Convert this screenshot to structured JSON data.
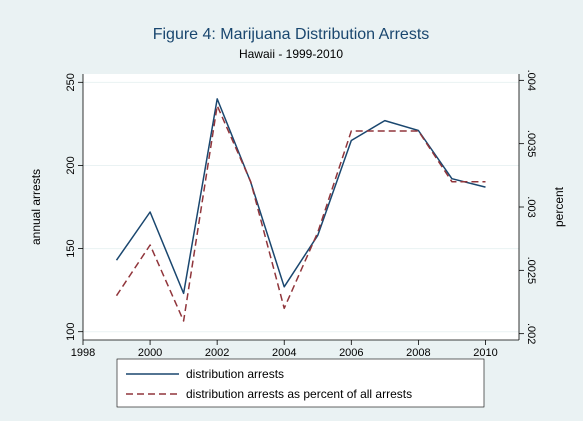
{
  "chart_data": {
    "type": "line",
    "title": "Figure 4: Marijuana Distribution Arrests",
    "subtitle": "Hawaii - 1999-2010",
    "ylabel_left": "annual arrests",
    "ylabel_right": "percent",
    "x_ticks": [
      "1998",
      "2000",
      "2002",
      "2004",
      "2006",
      "2008",
      "2010"
    ],
    "y_left_ticks": [
      "100",
      "150",
      "200",
      "250"
    ],
    "y_right_ticks": [
      ".002",
      ".0025",
      ".003",
      ".0035",
      ".004"
    ],
    "xlim": [
      1998,
      2011
    ],
    "ylim_left": [
      95,
      255
    ],
    "ylim_right": [
      0.00195,
      0.00405
    ],
    "x": [
      1999,
      2000,
      2001,
      2002,
      2003,
      2004,
      2005,
      2006,
      2007,
      2008,
      2009,
      2010
    ],
    "series": [
      {
        "name": "distribution arrests",
        "axis": "left",
        "color": "#1a476f",
        "style": "solid",
        "values": [
          143,
          172,
          123,
          240,
          190,
          127,
          158,
          215,
          227,
          221,
          192,
          187
        ]
      },
      {
        "name": "distribution arrests as percent of all arrests",
        "axis": "right",
        "color": "#90353b",
        "style": "dashed",
        "values": [
          0.0023,
          0.0027,
          0.0021,
          0.0038,
          0.0032,
          0.0022,
          0.0028,
          0.0036,
          0.0036,
          0.0036,
          0.0032,
          0.0032
        ]
      }
    ],
    "grid": true,
    "legend_position": "bottom"
  },
  "colors": {
    "background": "#eaf2f3",
    "plot_background": "#ffffff",
    "title": "#1a476f",
    "grid": "#eaf2f3"
  }
}
